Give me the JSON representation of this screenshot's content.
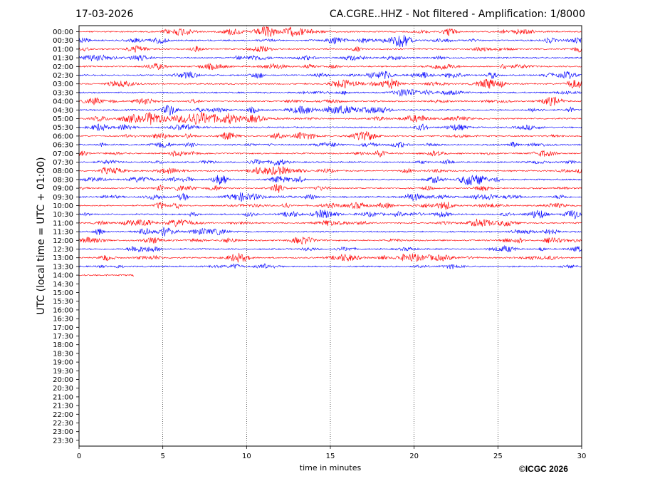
{
  "header": {
    "date": "17-03-2026",
    "station": "CA.CGRE..HHZ - Not filtered - Amplification: 1/8000"
  },
  "credit": "©ICGC 2026",
  "chart_data": {
    "type": "line",
    "title": "CA.CGRE..HHZ - Not filtered - Amplification: 1/8000",
    "date": "17-03-2026",
    "xlabel": "time in minutes",
    "ylabel": "UTC (local time = UTC + 01:00)",
    "xlim": [
      0,
      30
    ],
    "x_ticks": [
      0,
      5,
      10,
      15,
      20,
      25,
      30
    ],
    "grid": "vertical dotted lines at 5-minute intervals",
    "trace_colors": [
      "#ff0000",
      "#0000ff"
    ],
    "row_labels": [
      "00:00",
      "00:30",
      "01:00",
      "01:30",
      "02:00",
      "02:30",
      "03:00",
      "03:30",
      "04:00",
      "04:30",
      "05:00",
      "05:30",
      "06:00",
      "06:30",
      "07:00",
      "07:30",
      "08:00",
      "08:30",
      "09:00",
      "09:30",
      "10:00",
      "10:30",
      "11:00",
      "11:30",
      "12:00",
      "12:30",
      "13:00",
      "13:30",
      "14:00",
      "14:30",
      "15:00",
      "15:30",
      "16:00",
      "16:30",
      "17:00",
      "17:30",
      "18:00",
      "18:30",
      "19:00",
      "19:30",
      "20:00",
      "20:30",
      "21:00",
      "21:30",
      "22:00",
      "22:30",
      "23:00",
      "23:30"
    ],
    "rows_with_data": 29,
    "last_row_end_minute": 3.3
  }
}
